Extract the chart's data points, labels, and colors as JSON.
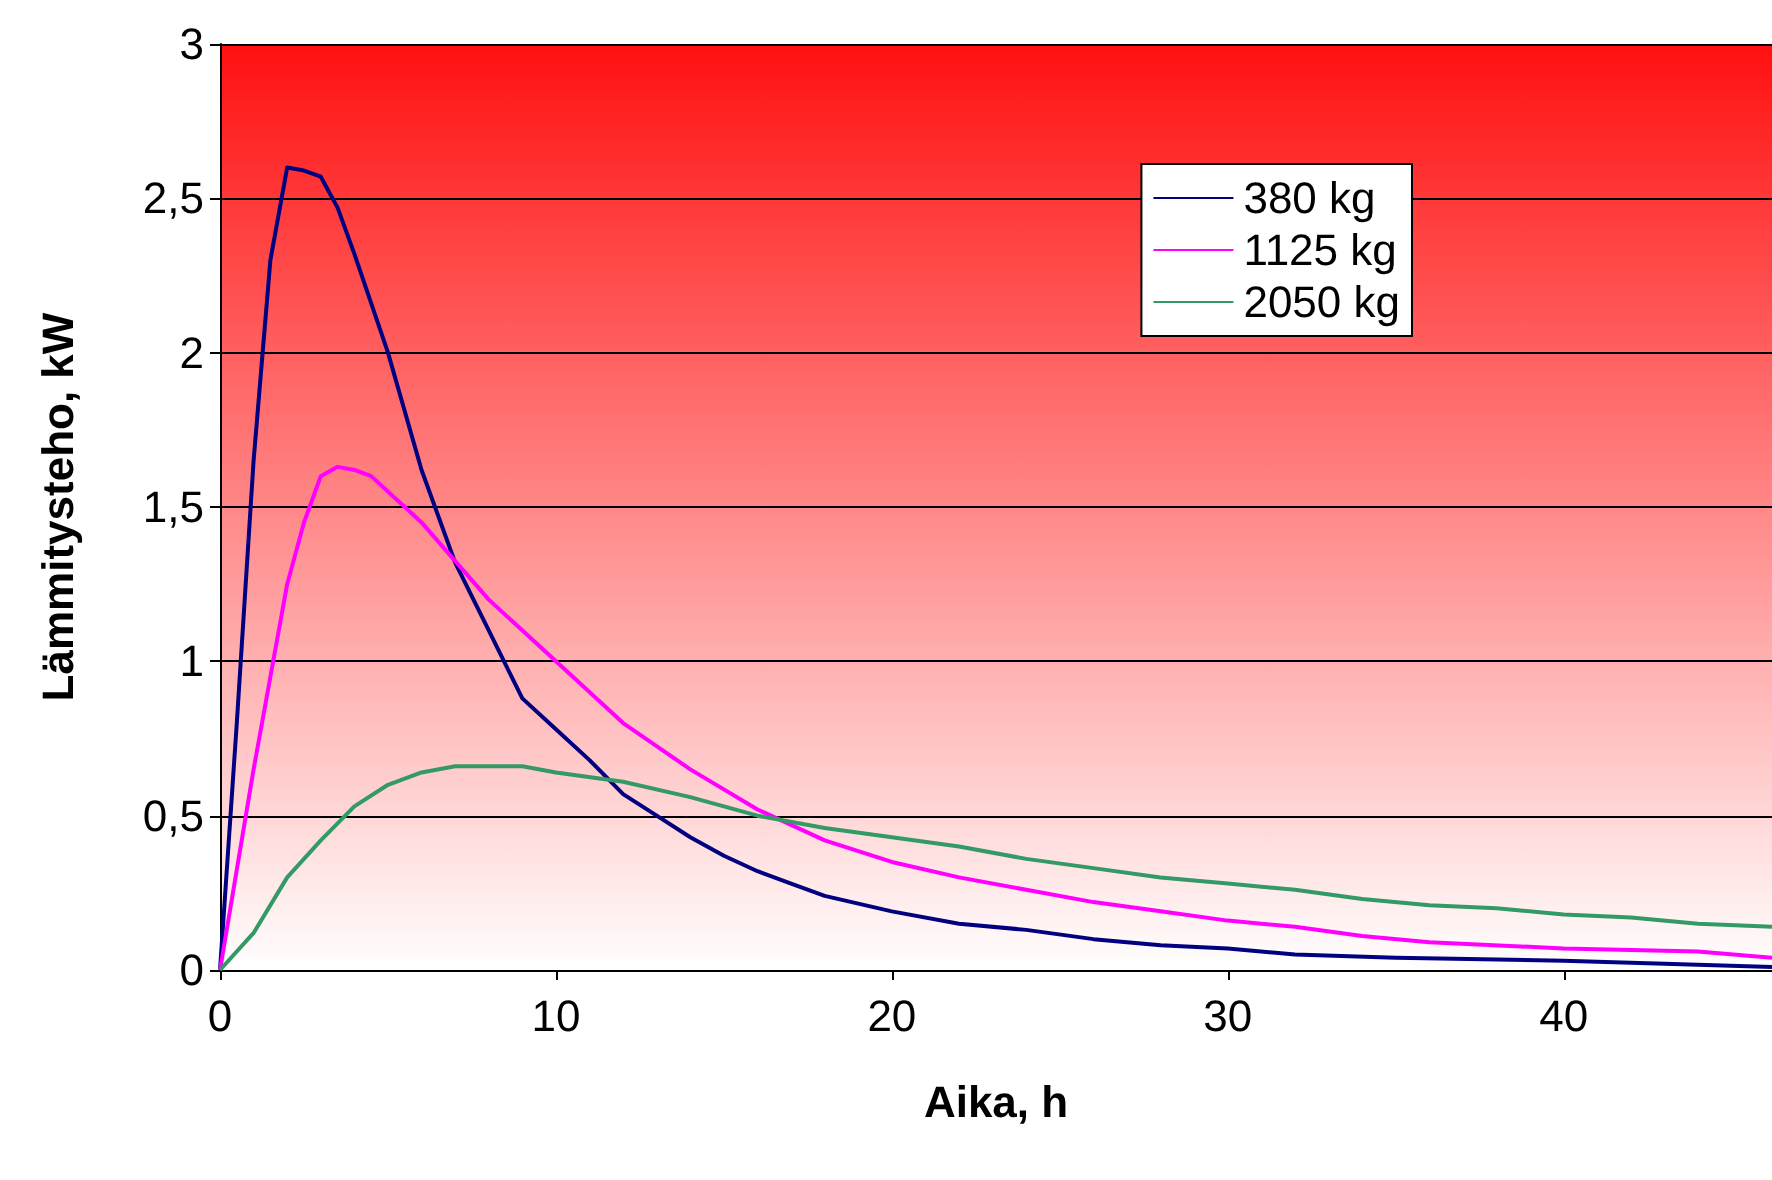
{
  "chart_data": {
    "type": "line",
    "xlabel": "Aika, h",
    "ylabel": "Lämmitysteho, kW",
    "xlim": [
      0,
      46.2
    ],
    "xticks": [
      0,
      10,
      20,
      30,
      40
    ],
    "ylim": [
      0,
      3
    ],
    "yticks": [
      0,
      {
        "value": 0.5,
        "label": "0,5"
      },
      1,
      {
        "value": 1.5,
        "label": "1,5"
      },
      2,
      {
        "value": 2.5,
        "label": "2,5"
      },
      3
    ],
    "grid": "y",
    "legend": "top right",
    "marker": "none",
    "line_style": "solid",
    "series": [
      {
        "name": "380 kg",
        "color": "#000080",
        "x": [
          0,
          0.5,
          1,
          1.5,
          2,
          2.5,
          3,
          3.5,
          4,
          5,
          6,
          7,
          8,
          9,
          10,
          11,
          12,
          13,
          14,
          15,
          16,
          17,
          18,
          20,
          22,
          24,
          26,
          28,
          30,
          32,
          35,
          40,
          43,
          46.2
        ],
        "values": [
          0,
          0.8,
          1.65,
          2.3,
          2.6,
          2.59,
          2.57,
          2.47,
          2.32,
          2.0,
          1.62,
          1.32,
          1.1,
          0.88,
          0.78,
          0.68,
          0.57,
          0.5,
          0.43,
          0.37,
          0.32,
          0.28,
          0.24,
          0.19,
          0.15,
          0.13,
          0.1,
          0.08,
          0.07,
          0.05,
          0.04,
          0.03,
          0.02,
          0.01
        ]
      },
      {
        "name": "1125 kg",
        "color": "#ff00ff",
        "x": [
          0,
          1,
          2,
          2.5,
          3,
          3.5,
          4,
          4.5,
          6,
          8,
          10,
          12,
          14,
          16,
          18,
          20,
          22,
          24,
          26,
          28,
          30,
          32,
          34,
          36,
          40,
          44,
          46.2
        ],
        "values": [
          0,
          0.65,
          1.25,
          1.45,
          1.6,
          1.63,
          1.62,
          1.6,
          1.45,
          1.2,
          1.0,
          0.8,
          0.65,
          0.52,
          0.42,
          0.35,
          0.3,
          0.26,
          0.22,
          0.19,
          0.16,
          0.14,
          0.11,
          0.09,
          0.07,
          0.06,
          0.04
        ]
      },
      {
        "name": "2050 kg",
        "color": "#339966",
        "x": [
          0,
          1,
          2,
          3,
          4,
          5,
          6,
          7,
          9,
          10,
          12,
          14,
          16,
          18,
          20,
          22,
          24,
          26,
          28,
          30,
          32,
          34,
          36,
          38,
          40,
          42,
          44,
          46.2
        ],
        "values": [
          0,
          0.12,
          0.3,
          0.42,
          0.53,
          0.6,
          0.64,
          0.66,
          0.66,
          0.64,
          0.61,
          0.56,
          0.5,
          0.46,
          0.43,
          0.4,
          0.36,
          0.33,
          0.3,
          0.28,
          0.26,
          0.23,
          0.21,
          0.2,
          0.18,
          0.17,
          0.15,
          0.14
        ]
      }
    ]
  }
}
